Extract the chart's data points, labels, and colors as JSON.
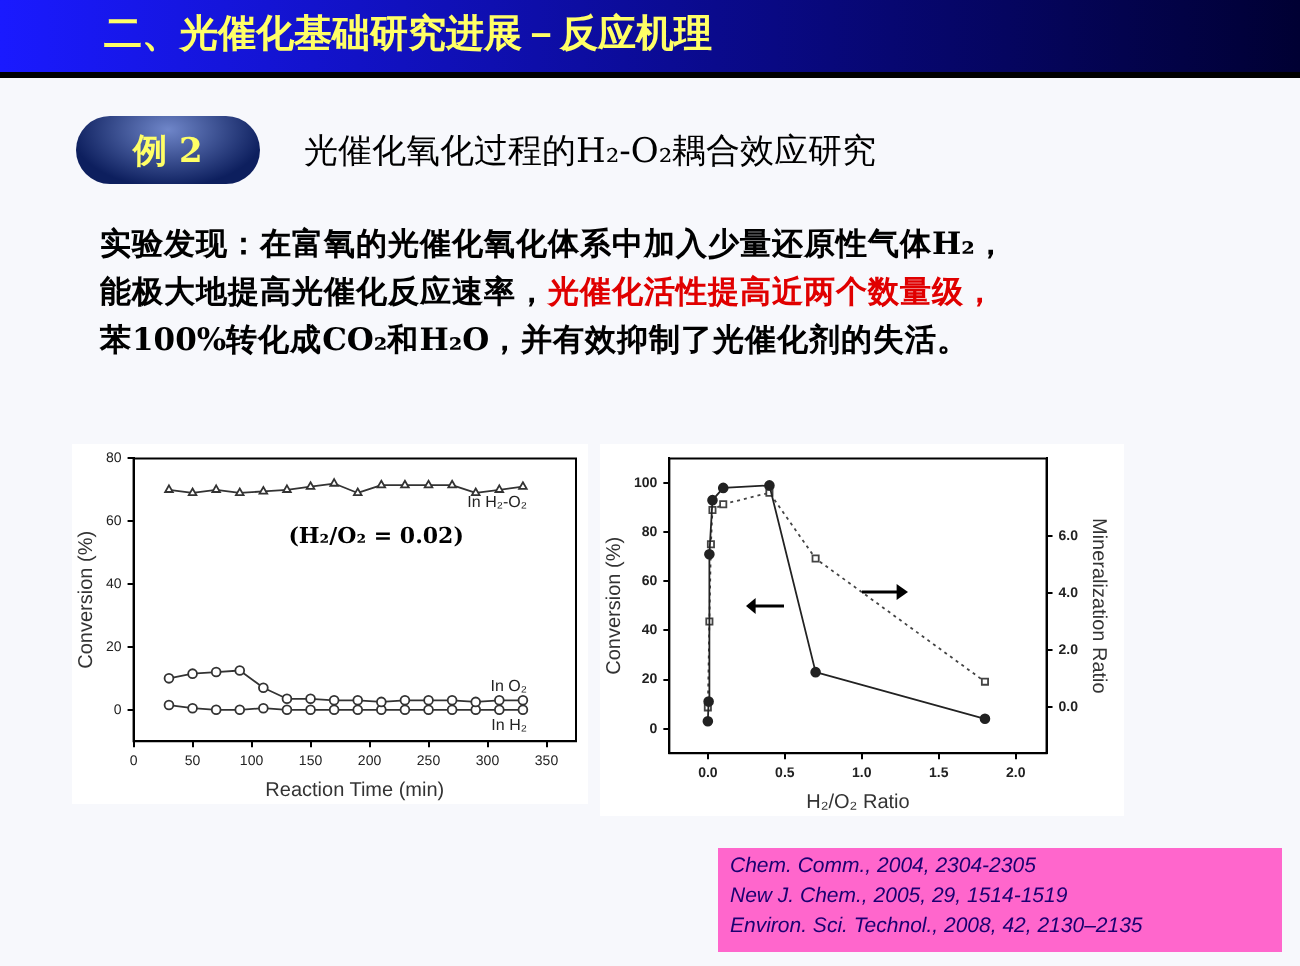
{
  "chart_data": [
    {
      "type": "other",
      "title": "二、光催化基础研究进展－反应机理",
      "subtitle": "光催化氧化过程的H₂-O₂耦合效应研究",
      "annotations": [
        "例 2",
        "实验发现：在富氧的光催化氧化体系中加入少量还原性气体H₂，",
        "能极大地提高光催化反应速率，",
        "光催化活性提高近两个数量级，",
        "苯100%转化成CO₂和H₂O，并有效抑制了光催化剂的失活。"
      ]
    },
    {
      "type": "line",
      "xlabel": "Reaction Time (min)",
      "ylabel": "Conversion (%)",
      "annotations": [
        "(H₂/O₂ = 0.02)"
      ],
      "x": [
        30,
        50,
        70,
        90,
        110,
        130,
        150,
        170,
        190,
        210,
        230,
        250,
        270,
        290,
        310,
        330
      ],
      "series": [
        {
          "name": "In H₂-O₂",
          "color": "#333333",
          "marker": "triangle",
          "values": [
            70,
            69,
            70,
            69,
            69.5,
            70,
            71,
            72,
            69,
            71.5,
            71.5,
            71.5,
            71.5,
            69,
            70,
            71
          ]
        },
        {
          "name": "In O₂",
          "color": "#333333",
          "marker": "circle",
          "values": [
            10,
            11.5,
            12,
            12.5,
            7,
            3.5,
            3.5,
            3,
            3,
            2.5,
            3,
            3,
            3,
            2.5,
            3,
            3
          ]
        },
        {
          "name": "In H₂",
          "color": "#333333",
          "marker": "circle",
          "values": [
            1.5,
            0.5,
            0,
            0,
            0.5,
            0,
            0,
            0,
            0,
            0,
            0,
            0,
            0,
            0,
            0,
            0
          ]
        }
      ],
      "xlim": [
        0,
        375
      ],
      "xticks": [
        0,
        50,
        100,
        150,
        200,
        250,
        300,
        350
      ],
      "ylim": [
        -10,
        80
      ],
      "yticks": [
        0,
        20,
        40,
        60,
        80
      ],
      "grid": false,
      "legend": false
    },
    {
      "type": "line",
      "xlabel": "H₂/O₂ Ratio",
      "ylabel": "Conversion (%)",
      "y2label": "Mineralization Ratio",
      "annotations": [
        "Chem. Comm., 2004, 2304-2305",
        "New J. Chem., 2005, 29, 1514-1519",
        "Environ. Sci. Technol., 2008, 42, 2130–2135"
      ],
      "series": [
        {
          "color": "#222222",
          "marker": "circle",
          "line_style": "solid",
          "x": [
            0,
            0.005,
            0.01,
            0.03,
            0.1,
            0.4,
            0.7,
            1.8
          ],
          "values": [
            3,
            11,
            71,
            93,
            98,
            99,
            23,
            4
          ]
        },
        {
          "color": "#444444",
          "marker": "square",
          "line_style": "dotted",
          "axis": "y2",
          "x": [
            0,
            0.01,
            0.02,
            0.03,
            0.1,
            0.4,
            0.7,
            1.8
          ],
          "values": [
            0,
            3.0,
            5.7,
            6.9,
            7.1,
            7.5,
            5.2,
            0.9
          ]
        }
      ],
      "xlim": [
        -0.25,
        2.2
      ],
      "xticks": [
        {
          "value": 0,
          "label": "0.0"
        },
        {
          "value": 0.5,
          "label": "0.5"
        },
        {
          "value": 1,
          "label": "1.0"
        },
        {
          "value": 1.5,
          "label": "1.5"
        },
        {
          "value": 2,
          "label": "2.0"
        }
      ],
      "ylim": [
        -10,
        110
      ],
      "yticks": [
        0,
        20,
        40,
        60,
        80,
        100
      ],
      "y2lim": [
        -1.6,
        8.7
      ],
      "y2ticks": [
        {
          "value": 0,
          "label": "0.0"
        },
        {
          "value": 2,
          "label": "2.0"
        },
        {
          "value": 4,
          "label": "4.0"
        },
        {
          "value": 6,
          "label": "6.0"
        }
      ],
      "grid": false,
      "legend": false
    }
  ]
}
